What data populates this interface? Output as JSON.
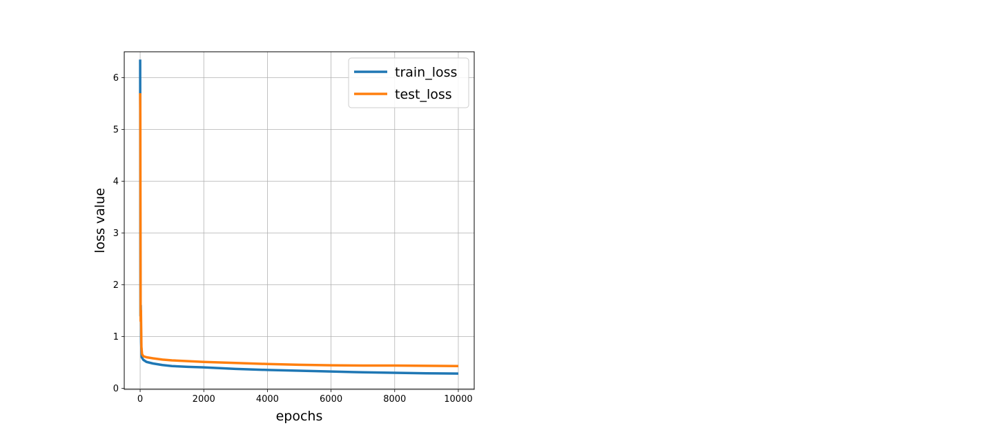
{
  "chart_data": {
    "type": "line",
    "title": "",
    "xlabel": "epochs",
    "ylabel": "loss value",
    "xlim": [
      -500,
      10500
    ],
    "ylim": [
      -0.02,
      6.5
    ],
    "xticks": [
      0,
      2000,
      4000,
      6000,
      8000,
      10000
    ],
    "xtick_labels": [
      "0",
      "2000",
      "4000",
      "6000",
      "8000",
      "10000"
    ],
    "yticks": [
      0,
      1,
      2,
      3,
      4,
      5,
      6
    ],
    "ytick_labels": [
      "0",
      "1",
      "2",
      "3",
      "4",
      "5",
      "6"
    ],
    "grid": true,
    "legend": {
      "position": "top-right"
    },
    "series": [
      {
        "name": "train_loss",
        "color": "#1f77b4",
        "points": [
          [
            0,
            6.35
          ],
          [
            5,
            3.5
          ],
          [
            10,
            1.4
          ],
          [
            20,
            1.6
          ],
          [
            30,
            0.9
          ],
          [
            50,
            0.6
          ],
          [
            100,
            0.55
          ],
          [
            200,
            0.51
          ],
          [
            400,
            0.48
          ],
          [
            700,
            0.45
          ],
          [
            1000,
            0.43
          ],
          [
            1500,
            0.415
          ],
          [
            2000,
            0.405
          ],
          [
            2500,
            0.39
          ],
          [
            3000,
            0.375
          ],
          [
            4000,
            0.355
          ],
          [
            5000,
            0.34
          ],
          [
            6000,
            0.325
          ],
          [
            7000,
            0.31
          ],
          [
            8000,
            0.3
          ],
          [
            9000,
            0.29
          ],
          [
            10000,
            0.285
          ]
        ]
      },
      {
        "name": "test_loss",
        "color": "#ff7f0e",
        "points": [
          [
            0,
            5.7
          ],
          [
            5,
            5.3
          ],
          [
            10,
            3.4
          ],
          [
            15,
            1.3
          ],
          [
            25,
            1.5
          ],
          [
            40,
            0.8
          ],
          [
            60,
            0.66
          ],
          [
            100,
            0.62
          ],
          [
            200,
            0.6
          ],
          [
            400,
            0.58
          ],
          [
            700,
            0.555
          ],
          [
            1000,
            0.54
          ],
          [
            1500,
            0.525
          ],
          [
            2000,
            0.51
          ],
          [
            3000,
            0.49
          ],
          [
            4000,
            0.47
          ],
          [
            5000,
            0.455
          ],
          [
            6000,
            0.445
          ],
          [
            7000,
            0.44
          ],
          [
            8000,
            0.44
          ],
          [
            9000,
            0.435
          ],
          [
            10000,
            0.43
          ]
        ]
      }
    ]
  }
}
